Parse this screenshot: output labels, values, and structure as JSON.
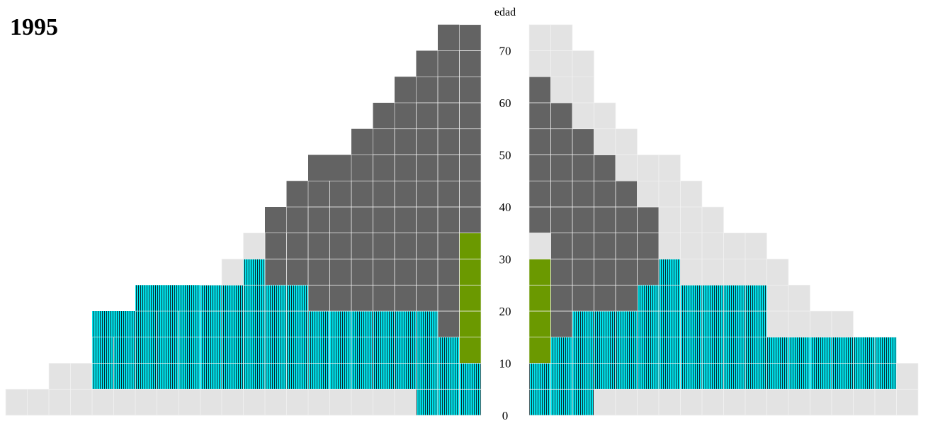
{
  "chart_data": {
    "type": "bar",
    "subtype": "population-pyramid",
    "title": "1995",
    "ylabel": "edad",
    "yticks": [
      0,
      10,
      20,
      30,
      40,
      50,
      60,
      70
    ],
    "ylim": [
      0,
      75
    ],
    "bands": [
      {
        "from": 0,
        "to": 5,
        "left": 22,
        "right": 18
      },
      {
        "from": 5,
        "to": 10,
        "left": 20,
        "right": 18
      },
      {
        "from": 10,
        "to": 15,
        "left": 18,
        "right": 17
      },
      {
        "from": 15,
        "to": 20,
        "left": 16,
        "right": 15
      },
      {
        "from": 20,
        "to": 25,
        "left": 13,
        "right": 13
      },
      {
        "from": 25,
        "to": 30,
        "left": 12,
        "right": 12
      },
      {
        "from": 30,
        "to": 35,
        "left": 11,
        "right": 11
      },
      {
        "from": 35,
        "to": 40,
        "left": 9,
        "right": 9
      },
      {
        "from": 40,
        "to": 45,
        "left": 8,
        "right": 8
      },
      {
        "from": 45,
        "to": 50,
        "left": 6,
        "right": 7
      },
      {
        "from": 50,
        "to": 55,
        "left": 5,
        "right": 5
      },
      {
        "from": 55,
        "to": 60,
        "left": 4,
        "right": 4
      },
      {
        "from": 60,
        "to": 65,
        "left": 3,
        "right": 3
      },
      {
        "from": 65,
        "to": 70,
        "left": 2,
        "right": 3
      },
      {
        "from": 70,
        "to": 75,
        "left": 1,
        "right": 2
      }
    ],
    "series": [
      {
        "id": "cyan",
        "color": "#00e5ee",
        "pattern": "vertical-stripes",
        "segments": [
          {
            "side": "left",
            "from": 0,
            "to": 5,
            "start": 0,
            "end": 3
          },
          {
            "side": "left",
            "from": 5,
            "to": 10,
            "start": 0,
            "end": 18
          },
          {
            "side": "left",
            "from": 10,
            "to": 15,
            "start": 0,
            "end": 18
          },
          {
            "side": "left",
            "from": 15,
            "to": 20,
            "start": 2,
            "end": 18
          },
          {
            "side": "left",
            "from": 20,
            "to": 25,
            "start": 8,
            "end": 16
          },
          {
            "side": "left",
            "from": 25,
            "to": 30,
            "start": 10,
            "end": 11
          },
          {
            "side": "right",
            "from": 0,
            "to": 5,
            "start": 0,
            "end": 3
          },
          {
            "side": "right",
            "from": 5,
            "to": 10,
            "start": 0,
            "end": 17
          },
          {
            "side": "right",
            "from": 10,
            "to": 15,
            "start": 0,
            "end": 17
          },
          {
            "side": "right",
            "from": 15,
            "to": 20,
            "start": 1,
            "end": 11
          },
          {
            "side": "right",
            "from": 20,
            "to": 25,
            "start": 2,
            "end": 11
          },
          {
            "side": "right",
            "from": 25,
            "to": 30,
            "start": 5,
            "end": 7
          }
        ]
      },
      {
        "id": "dark-gray",
        "color": "#636363",
        "pattern": "solid",
        "segments": [
          {
            "side": "left",
            "from": 15,
            "to": 20,
            "start": 1,
            "end": 2
          },
          {
            "side": "left",
            "from": 20,
            "to": 25,
            "start": 1,
            "end": 8
          },
          {
            "side": "left",
            "from": 25,
            "to": 35,
            "start": 1,
            "end": 10
          },
          {
            "side": "left",
            "from": 35,
            "to": 40,
            "start": 0,
            "end": 10
          },
          {
            "side": "left",
            "from": 40,
            "to": 45,
            "start": 0,
            "end": 9
          },
          {
            "side": "left",
            "from": 45,
            "to": 50,
            "start": 0,
            "end": 8
          },
          {
            "side": "left",
            "from": 50,
            "to": 55,
            "start": 0,
            "end": 6
          },
          {
            "side": "left",
            "from": 55,
            "to": 60,
            "start": 0,
            "end": 5
          },
          {
            "side": "left",
            "from": 60,
            "to": 65,
            "start": 0,
            "end": 4
          },
          {
            "side": "left",
            "from": 65,
            "to": 70,
            "start": 0,
            "end": 3
          },
          {
            "side": "left",
            "from": 70,
            "to": 75,
            "start": 0,
            "end": 2
          },
          {
            "side": "right",
            "from": 15,
            "to": 20,
            "start": 1,
            "end": 2
          },
          {
            "side": "right",
            "from": 20,
            "to": 25,
            "start": 1,
            "end": 5
          },
          {
            "side": "right",
            "from": 25,
            "to": 35,
            "start": 1,
            "end": 6
          },
          {
            "side": "right",
            "from": 35,
            "to": 40,
            "start": 0,
            "end": 6
          },
          {
            "side": "right",
            "from": 40,
            "to": 45,
            "start": 0,
            "end": 5
          },
          {
            "side": "right",
            "from": 45,
            "to": 50,
            "start": 0,
            "end": 4
          },
          {
            "side": "right",
            "from": 50,
            "to": 55,
            "start": 0,
            "end": 3
          },
          {
            "side": "right",
            "from": 55,
            "to": 60,
            "start": 0,
            "end": 2
          },
          {
            "side": "right",
            "from": 60,
            "to": 65,
            "start": 0,
            "end": 1
          }
        ]
      },
      {
        "id": "green",
        "color": "#6b9900",
        "pattern": "solid",
        "segments": [
          {
            "side": "left",
            "from": 10,
            "to": 15,
            "start": 0,
            "end": 1
          },
          {
            "side": "left",
            "from": 15,
            "to": 20,
            "start": 0,
            "end": 1
          },
          {
            "side": "left",
            "from": 20,
            "to": 35,
            "start": 0,
            "end": 1
          },
          {
            "side": "right",
            "from": 10,
            "to": 30,
            "start": 0,
            "end": 1
          }
        ]
      }
    ],
    "colors": {
      "background_band": "#e3e3e3",
      "grid": "#f2f2f2",
      "stripe_dark": "#0b2a30"
    }
  }
}
